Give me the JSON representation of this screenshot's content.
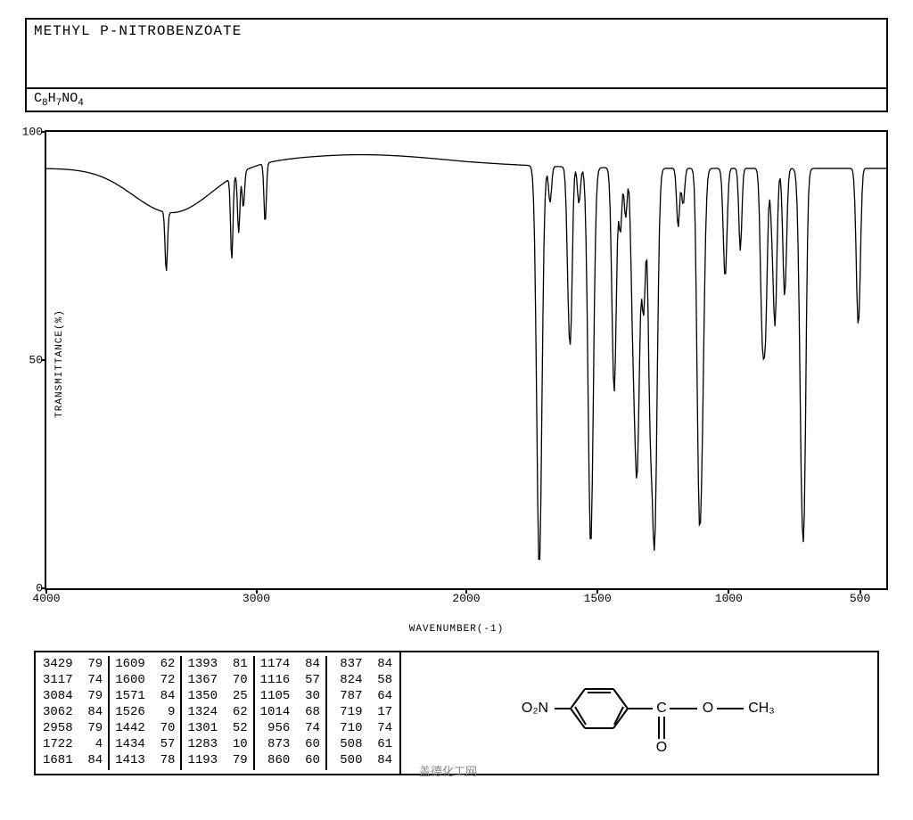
{
  "header": {
    "title": "METHYL P-NITROBENZOATE",
    "formula_html": "C<sub>8</sub>H<sub>7</sub>NO<sub>4</sub>"
  },
  "chart": {
    "type": "line",
    "y_label": "TRANSMITTANCE(%)",
    "x_label": "WAVENUMBER(-1)",
    "background_color": "#ffffff",
    "line_color": "#000000",
    "border_color": "#000000",
    "line_width": 1.3,
    "font_family": "Courier New",
    "title_fontsize": 16,
    "label_fontsize": 11,
    "tick_fontsize": 13,
    "xlim": [
      4000,
      400
    ],
    "ylim": [
      0,
      100
    ],
    "y_ticks": [
      0,
      50,
      100
    ],
    "x_ticks": [
      4000,
      3000,
      2000,
      1500,
      1000,
      500
    ],
    "baseline": 92,
    "peaks": [
      {
        "wn": 3429,
        "t": 79
      },
      {
        "wn": 3117,
        "t": 74
      },
      {
        "wn": 3084,
        "t": 79
      },
      {
        "wn": 3062,
        "t": 84
      },
      {
        "wn": 2958,
        "t": 79
      },
      {
        "wn": 1722,
        "t": 4
      },
      {
        "wn": 1681,
        "t": 84
      },
      {
        "wn": 1609,
        "t": 62
      },
      {
        "wn": 1600,
        "t": 72
      },
      {
        "wn": 1571,
        "t": 84
      },
      {
        "wn": 1526,
        "t": 9
      },
      {
        "wn": 1442,
        "t": 70
      },
      {
        "wn": 1434,
        "t": 57
      },
      {
        "wn": 1413,
        "t": 78
      },
      {
        "wn": 1393,
        "t": 81
      },
      {
        "wn": 1367,
        "t": 70
      },
      {
        "wn": 1350,
        "t": 25
      },
      {
        "wn": 1324,
        "t": 62
      },
      {
        "wn": 1301,
        "t": 52
      },
      {
        "wn": 1283,
        "t": 10
      },
      {
        "wn": 1193,
        "t": 79
      },
      {
        "wn": 1174,
        "t": 84
      },
      {
        "wn": 1116,
        "t": 57
      },
      {
        "wn": 1105,
        "t": 30
      },
      {
        "wn": 1014,
        "t": 68
      },
      {
        "wn": 956,
        "t": 74
      },
      {
        "wn": 873,
        "t": 60
      },
      {
        "wn": 860,
        "t": 60
      },
      {
        "wn": 837,
        "t": 84
      },
      {
        "wn": 824,
        "t": 58
      },
      {
        "wn": 787,
        "t": 64
      },
      {
        "wn": 719,
        "t": 17
      },
      {
        "wn": 710,
        "t": 74
      },
      {
        "wn": 508,
        "t": 61
      },
      {
        "wn": 500,
        "t": 84
      }
    ]
  },
  "peak_table": {
    "columns_per_group": 2,
    "rows_per_group": 7,
    "groups": [
      [
        [
          "3429",
          "79"
        ],
        [
          "3117",
          "74"
        ],
        [
          "3084",
          "79"
        ],
        [
          "3062",
          "84"
        ],
        [
          "2958",
          "79"
        ],
        [
          "1722",
          " 4"
        ],
        [
          "1681",
          "84"
        ]
      ],
      [
        [
          "1609",
          "62"
        ],
        [
          "1600",
          "72"
        ],
        [
          "1571",
          "84"
        ],
        [
          "1526",
          " 9"
        ],
        [
          "1442",
          "70"
        ],
        [
          "1434",
          "57"
        ],
        [
          "1413",
          "78"
        ]
      ],
      [
        [
          "1393",
          "81"
        ],
        [
          "1367",
          "70"
        ],
        [
          "1350",
          "25"
        ],
        [
          "1324",
          "62"
        ],
        [
          "1301",
          "52"
        ],
        [
          "1283",
          "10"
        ],
        [
          "1193",
          "79"
        ]
      ],
      [
        [
          "1174",
          "84"
        ],
        [
          "1116",
          "57"
        ],
        [
          "1105",
          "30"
        ],
        [
          "1014",
          "68"
        ],
        [
          " 956",
          "74"
        ],
        [
          " 873",
          "60"
        ],
        [
          " 860",
          "60"
        ]
      ],
      [
        [
          " 837",
          "84"
        ],
        [
          " 824",
          "58"
        ],
        [
          " 787",
          "64"
        ],
        [
          " 719",
          "17"
        ],
        [
          " 710",
          "74"
        ],
        [
          " 508",
          "61"
        ],
        [
          " 500",
          "84"
        ]
      ]
    ]
  },
  "structure": {
    "label_left": "O₂N",
    "label_right": "CH₃",
    "label_c": "C",
    "label_o_bridge": "O",
    "label_o_dbl": "O",
    "bond_color": "#000000",
    "text_color": "#000000",
    "fontsize": 16
  },
  "watermark": "盖德化工网"
}
